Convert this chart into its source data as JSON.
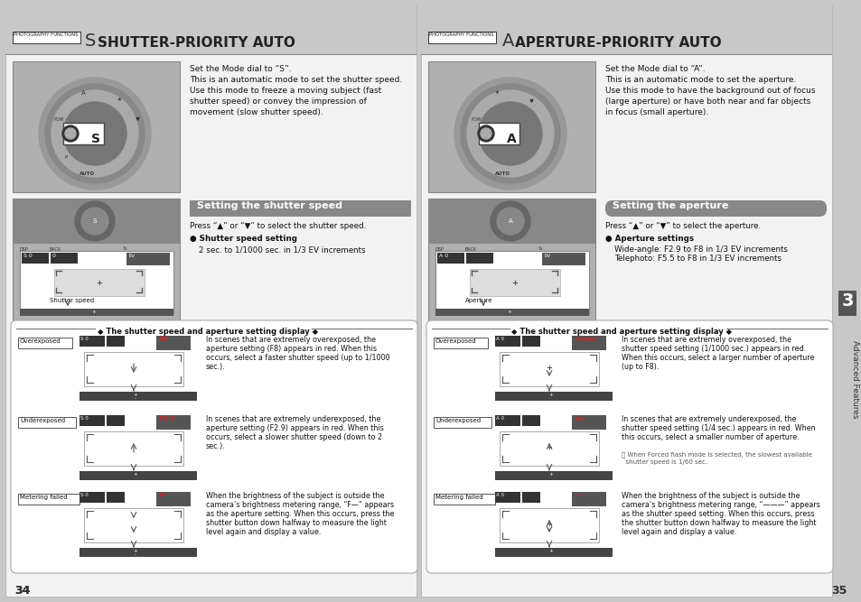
{
  "bg_color": "#c8c8c8",
  "page_bg": "#f2f2f2",
  "title_bar_bg": "#c0c0c0",
  "setting_bar_bg": "#888888",
  "lcd_bg": "#222222",
  "lcd_highlight": "#888888",
  "red_text": "#cc0000",
  "dark_text": "#111111",
  "white": "#ffffff",
  "box_border": "#555555",
  "panel_bg": "#aaaaaa",
  "panel_dark": "#666666",
  "sidebar_bg": "#555555",
  "divider_box_bg": "#dddddd",
  "divider_box_border": "#888888",
  "left_title_box": "PHOTOGRAPHY FUNCTIONS",
  "left_title_letter": "S",
  "left_title_main": "SHUTTER-PRIORITY AUTO",
  "right_title_box": "PHOTOGRAPHY FUNCTIONS",
  "right_title_letter": "A",
  "right_title_main": "APERTURE-PRIORITY AUTO",
  "left_desc": "Set the Mode dial to “S”.\nThis is an automatic mode to set the shutter speed.\nUse this mode to freeze a moving subject (fast\nshutter speed) or convey the impression of\nmovement (slow shutter speed).",
  "right_desc": "Set the Mode dial to “A”.\nThis is an automatic mode to set the aperture.\nUse this mode to have the background out of focus\n(large aperture) or have both near and far objects\nin focus (small aperture).",
  "left_setting_title": "Setting the shutter speed",
  "left_setting_text": "Press “▲” or “▼” to select the shutter speed.",
  "left_setting_bullet": "● Shutter speed setting",
  "left_setting_detail": "2 sec. to 1/1000 sec. in 1/3 EV increments",
  "left_label": "Shutter speed",
  "right_setting_title": "Setting the aperture",
  "right_setting_text": "Press “▲” or “▼” to select the aperture.",
  "right_setting_bullet": "● Aperture settings",
  "right_setting_detail1": "Wide-angle: F2.9 to F8 in 1/3 EV increments",
  "right_setting_detail2": "Telephoto: F5.5 to F8 in 1/3 EV increments",
  "right_label": "Aperture",
  "display_title": "◆ The shutter speed and aperture setting display ◆",
  "overexposed": "Overexposed",
  "underexposed": "Underexposed",
  "metering_failed": "Metering failed",
  "left_over_text": "In scenes that are extremely overexposed, the\naperture setting (F8) appears in red. When this\noccurs, select a faster shutter speed (up to 1/1000\nsec.).",
  "left_under_text": "In scenes that are extremely underexposed, the\naperture setting (F2.9) appears in red. When this\noccurs, select a slower shutter speed (down to 2\nsec.).",
  "left_meter_text": "When the brightness of the subject is outside the\ncamera’s brightness metering range, “F—” appears\nas the aperture setting. When this occurs, press the\nshutter button down halfway to measure the light\nlevel again and display a value.",
  "right_over_text": "In scenes that are extremely overexposed, the\nshutter speed setting (1/1000 sec.) appears in red.\nWhen this occurs, select a larger number of aperture\n(up to F8).",
  "right_under_text": "In scenes that are extremely underexposed, the\nshutter speed setting (1/4 sec.) appears in red. When\nthis occurs, select a smaller number of aperture.",
  "right_meter_text": "When the brightness of the subject is outside the\ncamera’s brightness metering range, “———” appears\nas the shutter speed setting. When this occurs, press\nthe shutter button down halfway to measure the light\nlevel again and display a value.",
  "flash_note": "ⓘ When Forced flash mode is selected, the slowest available\n  shutter speed is 1/60 sec.",
  "sidebar_text": "Advanced Features",
  "sidebar_num": "3",
  "page_left": "34",
  "page_right": "35"
}
